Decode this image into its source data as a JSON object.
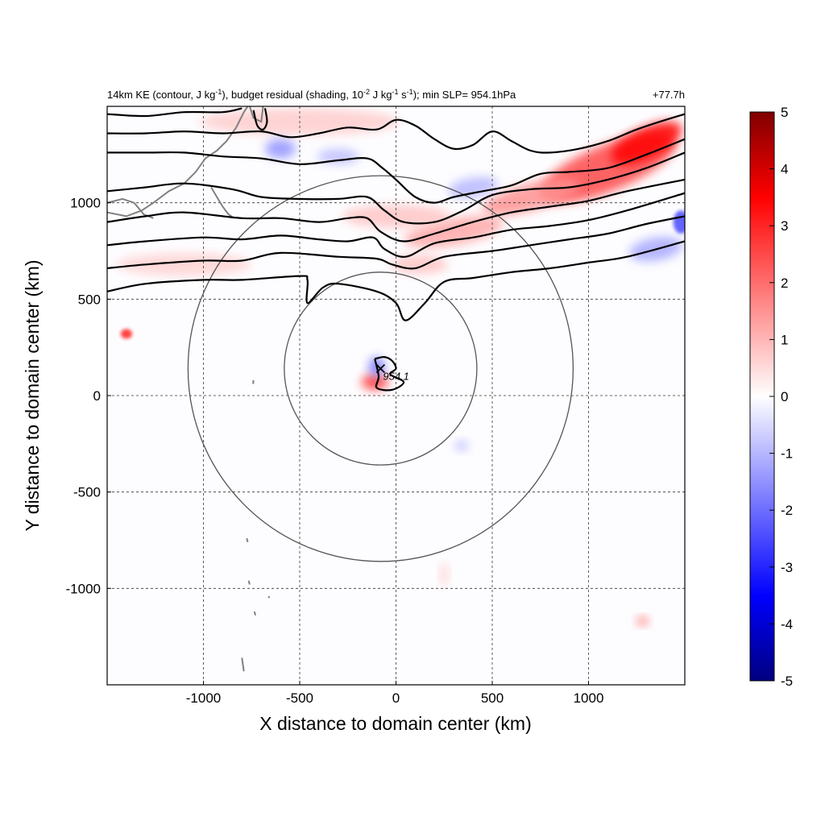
{
  "chart_data": {
    "type": "heatmap",
    "title": {
      "left_prefix": "14km KE (contour, J kg",
      "left_sup1": "-1",
      "left_mid": "), budget residual (shading, 10",
      "left_sup2": "-2",
      "left_mid2": " J kg",
      "left_sup3": "-1",
      "left_mid3": " s",
      "left_sup4": "-1",
      "left_suffix": "); min SLP= 954.1hPa",
      "right": "+77.7h"
    },
    "xlabel": "X distance to domain center (km)",
    "ylabel": "Y distance to domain center (km)",
    "xlim": [
      -1500,
      1500
    ],
    "ylim": [
      -1500,
      1500
    ],
    "xticks": [
      -1000,
      -500,
      0,
      500,
      1000
    ],
    "yticks": [
      -1000,
      -500,
      0,
      500,
      1000
    ],
    "xtick_labels": [
      "-1000",
      "-500",
      "0",
      "500",
      "1000"
    ],
    "ytick_labels": [
      "-1000",
      "-500",
      "0",
      "500",
      "1000"
    ],
    "grid": true,
    "colorbar": {
      "min": -5,
      "max": 5,
      "ticks": [
        5,
        4,
        3,
        2,
        1,
        0,
        -1,
        -2,
        -3,
        -4,
        -5
      ],
      "tick_labels": [
        "5",
        "4",
        "3",
        "2",
        "1",
        "0",
        "-1",
        "-2",
        "-3",
        "-4",
        "-5"
      ],
      "colormap": [
        "#000080",
        "#0000ff",
        "#ffffff",
        "#ff0000",
        "#800000"
      ]
    },
    "cyclone_center": {
      "x": -80,
      "y": 140,
      "label": "954.1",
      "marker": "x"
    },
    "range_circles": [
      {
        "center_x": -80,
        "center_y": 140,
        "radius_km": 500
      },
      {
        "center_x": -80,
        "center_y": 140,
        "radius_km": 1000
      }
    ],
    "ke_contours": [
      {
        "points": [
          [
            -1500,
            540
          ],
          [
            -1300,
            580
          ],
          [
            -1000,
            600
          ],
          [
            -800,
            600
          ],
          [
            -500,
            620
          ],
          [
            -460,
            600
          ],
          [
            -460,
            480
          ],
          [
            -380,
            560
          ],
          [
            -300,
            580
          ],
          [
            -100,
            540
          ],
          [
            0,
            480
          ],
          [
            50,
            390
          ],
          [
            150,
            480
          ],
          [
            250,
            590
          ],
          [
            400,
            610
          ],
          [
            600,
            640
          ],
          [
            800,
            660
          ],
          [
            1000,
            690
          ],
          [
            1200,
            720
          ],
          [
            1500,
            800
          ]
        ]
      },
      {
        "points": [
          [
            -1500,
            660
          ],
          [
            -1300,
            680
          ],
          [
            -1000,
            700
          ],
          [
            -800,
            700
          ],
          [
            -600,
            740
          ],
          [
            -300,
            720
          ],
          [
            -100,
            710
          ],
          [
            -20,
            680
          ],
          [
            100,
            660
          ],
          [
            250,
            720
          ],
          [
            500,
            750
          ],
          [
            700,
            780
          ],
          [
            900,
            810
          ],
          [
            1100,
            840
          ],
          [
            1300,
            890
          ],
          [
            1500,
            930
          ]
        ]
      },
      {
        "points": [
          [
            -1500,
            780
          ],
          [
            -1300,
            800
          ],
          [
            -1000,
            820
          ],
          [
            -800,
            810
          ],
          [
            -600,
            830
          ],
          [
            -400,
            810
          ],
          [
            -250,
            800
          ],
          [
            -120,
            820
          ],
          [
            -60,
            760
          ],
          [
            50,
            720
          ],
          [
            200,
            790
          ],
          [
            400,
            820
          ],
          [
            600,
            860
          ],
          [
            800,
            880
          ],
          [
            1000,
            910
          ],
          [
            1200,
            960
          ],
          [
            1500,
            1050
          ]
        ]
      },
      {
        "points": [
          [
            -1500,
            900
          ],
          [
            -1300,
            930
          ],
          [
            -1100,
            950
          ],
          [
            -800,
            920
          ],
          [
            -600,
            920
          ],
          [
            -400,
            900
          ],
          [
            -250,
            920
          ],
          [
            -150,
            920
          ],
          [
            -80,
            850
          ],
          [
            40,
            800
          ],
          [
            200,
            840
          ],
          [
            400,
            900
          ],
          [
            600,
            950
          ],
          [
            800,
            980
          ],
          [
            1000,
            1010
          ],
          [
            1200,
            1060
          ],
          [
            1500,
            1120
          ]
        ]
      },
      {
        "points": [
          [
            -1500,
            1060
          ],
          [
            -1300,
            1080
          ],
          [
            -1100,
            1100
          ],
          [
            -850,
            1070
          ],
          [
            -700,
            1030
          ],
          [
            -500,
            1020
          ],
          [
            -300,
            1020
          ],
          [
            -150,
            1030
          ],
          [
            -60,
            960
          ],
          [
            40,
            900
          ],
          [
            200,
            900
          ],
          [
            350,
            960
          ],
          [
            500,
            1040
          ],
          [
            700,
            1070
          ],
          [
            900,
            1080
          ],
          [
            1100,
            1120
          ],
          [
            1300,
            1180
          ],
          [
            1500,
            1260
          ]
        ]
      },
      {
        "points": [
          [
            -1500,
            1260
          ],
          [
            -1300,
            1260
          ],
          [
            -1100,
            1260
          ],
          [
            -900,
            1240
          ],
          [
            -700,
            1230
          ],
          [
            -500,
            1200
          ],
          [
            -300,
            1220
          ],
          [
            -150,
            1230
          ],
          [
            -70,
            1180
          ],
          [
            0,
            1120
          ],
          [
            100,
            1030
          ],
          [
            200,
            1000
          ],
          [
            300,
            1030
          ],
          [
            450,
            1060
          ],
          [
            600,
            1090
          ],
          [
            750,
            1150
          ],
          [
            900,
            1160
          ],
          [
            1100,
            1180
          ],
          [
            1300,
            1250
          ],
          [
            1500,
            1330
          ]
        ]
      },
      {
        "points": [
          [
            -1500,
            1360
          ],
          [
            -1300,
            1360
          ],
          [
            -1100,
            1370
          ],
          [
            -900,
            1360
          ],
          [
            -700,
            1370
          ],
          [
            -550,
            1340
          ],
          [
            -400,
            1360
          ],
          [
            -250,
            1390
          ],
          [
            -100,
            1380
          ],
          [
            0,
            1430
          ],
          [
            100,
            1400
          ],
          [
            200,
            1330
          ],
          [
            300,
            1280
          ],
          [
            400,
            1300
          ],
          [
            500,
            1370
          ],
          [
            600,
            1320
          ],
          [
            700,
            1270
          ],
          [
            800,
            1260
          ],
          [
            950,
            1280
          ],
          [
            1100,
            1320
          ],
          [
            1250,
            1380
          ],
          [
            1400,
            1430
          ],
          [
            1500,
            1460
          ]
        ]
      },
      {
        "points": [
          [
            -1500,
            1460
          ],
          [
            -1300,
            1450
          ],
          [
            -1100,
            1470
          ],
          [
            -900,
            1470
          ],
          [
            -800,
            1490
          ]
        ]
      },
      {
        "points": [
          [
            -740,
            1480
          ],
          [
            -720,
            1400
          ],
          [
            -690,
            1380
          ],
          [
            -670,
            1420
          ],
          [
            -680,
            1490
          ]
        ]
      },
      {
        "points": [
          [
            -110,
            190
          ],
          [
            -60,
            200
          ],
          [
            -20,
            180
          ],
          [
            0,
            140
          ],
          [
            -30,
            110
          ],
          [
            40,
            70
          ],
          [
            -20,
            30
          ],
          [
            -100,
            40
          ],
          [
            -90,
            100
          ],
          [
            -110,
            190
          ]
        ]
      }
    ],
    "shading_features": [
      {
        "x": 1100,
        "y": 1180,
        "rx": 380,
        "ry": 120,
        "rotate": -22,
        "value": 2.5
      },
      {
        "x": 1300,
        "y": 1310,
        "rx": 200,
        "ry": 80,
        "rotate": -25,
        "value": 3.5
      },
      {
        "x": 700,
        "y": 1030,
        "rx": 260,
        "ry": 70,
        "rotate": -15,
        "value": 1.5
      },
      {
        "x": 300,
        "y": 850,
        "rx": 260,
        "ry": 70,
        "rotate": -10,
        "value": 1.2
      },
      {
        "x": -500,
        "y": 1420,
        "rx": 520,
        "ry": 70,
        "rotate": 0,
        "value": 0.7
      },
      {
        "x": -1100,
        "y": 680,
        "rx": 350,
        "ry": 60,
        "rotate": 0,
        "value": 0.6
      },
      {
        "x": 0,
        "y": 930,
        "rx": 280,
        "ry": 60,
        "rotate": 0,
        "value": 0.8
      },
      {
        "x": 120,
        "y": 680,
        "rx": 150,
        "ry": 50,
        "rotate": 0,
        "value": 0.8
      },
      {
        "x": -1400,
        "y": 320,
        "rx": 30,
        "ry": 25,
        "rotate": 0,
        "value": 3.0
      },
      {
        "x": 1280,
        "y": -1170,
        "rx": 30,
        "ry": 22,
        "rotate": 0,
        "value": 2.0
      },
      {
        "x": -110,
        "y": 70,
        "rx": 70,
        "ry": 40,
        "rotate": 0,
        "value": 2.8
      },
      {
        "x": -100,
        "y": 150,
        "rx": 40,
        "ry": 50,
        "rotate": 0,
        "value": -2.0
      },
      {
        "x": -600,
        "y": 1280,
        "rx": 80,
        "ry": 50,
        "rotate": 0,
        "value": -1.5
      },
      {
        "x": 1350,
        "y": 760,
        "rx": 140,
        "ry": 60,
        "rotate": -10,
        "value": -1.2
      },
      {
        "x": 400,
        "y": 1080,
        "rx": 130,
        "ry": 50,
        "rotate": -10,
        "value": -1.0
      },
      {
        "x": -300,
        "y": 1240,
        "rx": 110,
        "ry": 40,
        "rotate": 0,
        "value": -0.9
      },
      {
        "x": 340,
        "y": -260,
        "rx": 35,
        "ry": 25,
        "rotate": 0,
        "value": -1.0
      },
      {
        "x": 250,
        "y": -930,
        "rx": 20,
        "ry": 60,
        "rotate": 0,
        "value": 0.7
      },
      {
        "x": 1480,
        "y": 900,
        "rx": 40,
        "ry": 60,
        "rotate": 0,
        "value": -2.5
      }
    ],
    "coastline_paths": [
      [
        [
          -1500,
          950
        ],
        [
          -1400,
          930
        ],
        [
          -1320,
          960
        ],
        [
          -1260,
          1000
        ],
        [
          -1180,
          1060
        ],
        [
          -1100,
          1100
        ],
        [
          -1040,
          1160
        ],
        [
          -990,
          1230
        ],
        [
          -930,
          1270
        ],
        [
          -880,
          1320
        ],
        [
          -830,
          1390
        ],
        [
          -790,
          1470
        ],
        [
          -770,
          1500
        ]
      ],
      [
        [
          -1500,
          1000
        ],
        [
          -1420,
          1020
        ],
        [
          -1360,
          1000
        ],
        [
          -1310,
          940
        ],
        [
          -1260,
          920
        ]
      ],
      [
        [
          -960,
          1080
        ],
        [
          -930,
          1030
        ],
        [
          -900,
          980
        ],
        [
          -870,
          940
        ],
        [
          -840,
          920
        ]
      ],
      [
        [
          -760,
          1500
        ],
        [
          -740,
          1440
        ],
        [
          -700,
          1420
        ],
        [
          -690,
          1500
        ]
      ],
      [
        [
          -790,
          -1430
        ],
        [
          -795,
          -1395
        ],
        [
          -800,
          -1360
        ]
      ],
      [
        [
          -760,
          -980
        ],
        [
          -765,
          -960
        ]
      ],
      [
        [
          -730,
          -1140
        ],
        [
          -735,
          -1120
        ]
      ],
      [
        [
          -660,
          -1050
        ],
        [
          -660,
          -1040
        ]
      ],
      [
        [
          -770,
          -760
        ],
        [
          -775,
          -740
        ]
      ],
      [
        [
          -740,
          80
        ],
        [
          -742,
          60
        ]
      ]
    ]
  }
}
